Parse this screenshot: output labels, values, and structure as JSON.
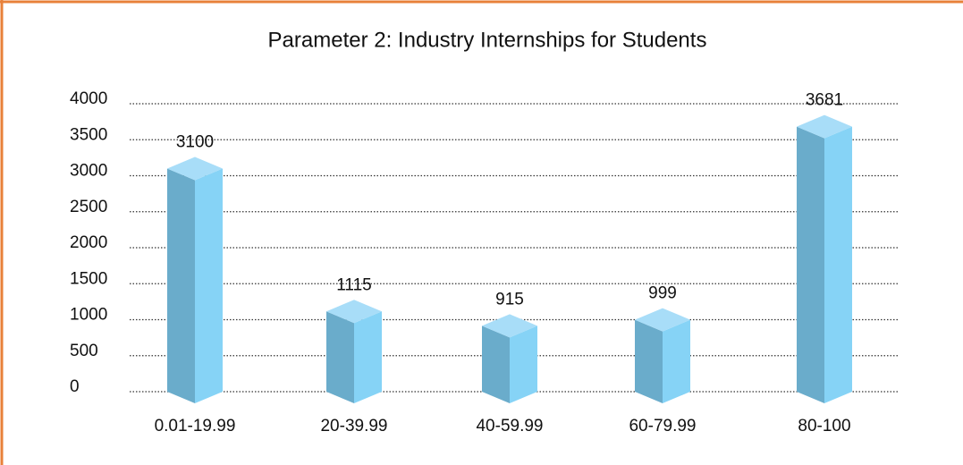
{
  "chart_data": {
    "type": "bar3d",
    "title": "Parameter 2: Industry Internships for Students",
    "categories": [
      "0.01-19.99",
      "20-39.99",
      "40-59.99",
      "60-79.99",
      "80-100"
    ],
    "values": [
      3100,
      1115,
      915,
      999,
      3681
    ],
    "color": "#86d3f6",
    "ylim": [
      0,
      4000
    ],
    "yticks": [
      0,
      500,
      1000,
      1500,
      2000,
      2500,
      3000,
      3500,
      4000
    ],
    "grid": true
  }
}
